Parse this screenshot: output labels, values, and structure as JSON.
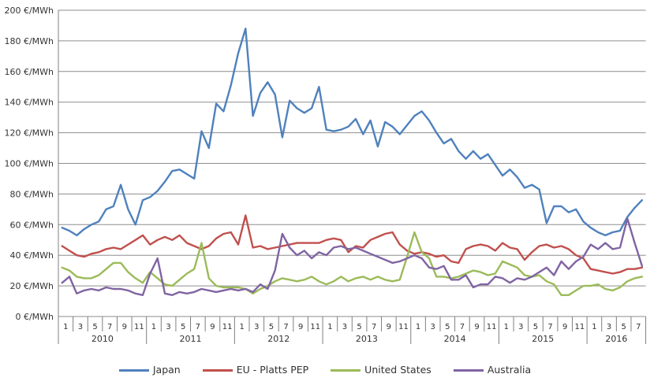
{
  "chart_data": {
    "type": "line",
    "title": "",
    "xlabel": "",
    "ylabel": "",
    "ylim": [
      0,
      200
    ],
    "ytick_step": 20,
    "ytick_suffix": " €/MWh",
    "grid": true,
    "legend_position": "bottom",
    "years": [
      "2010",
      "2011",
      "2012",
      "2013",
      "2014",
      "2015",
      "2016"
    ],
    "months_per_year": [
      12,
      12,
      12,
      12,
      12,
      12,
      8
    ],
    "colors": {
      "grid": "#8e8e8e",
      "axis": "#808080",
      "text": "#333333",
      "background": "#ffffff"
    },
    "series": [
      {
        "name": "Japan",
        "color": "#4F81BD",
        "values": [
          58,
          56,
          53,
          57,
          60,
          62,
          70,
          72,
          86,
          70,
          60,
          76,
          78,
          82,
          88,
          95,
          96,
          93,
          90,
          121,
          110,
          139,
          134,
          151,
          172,
          188,
          131,
          146,
          153,
          145,
          117,
          141,
          136,
          133,
          136,
          150,
          122,
          121,
          122,
          124,
          129,
          119,
          128,
          111,
          127,
          124,
          119,
          125,
          131,
          134,
          128,
          120,
          113,
          116,
          108,
          103,
          108,
          103,
          106,
          99,
          92,
          96,
          91,
          84,
          86,
          83,
          61,
          72,
          72,
          68,
          70,
          62,
          58,
          55,
          53,
          55,
          56,
          65,
          71,
          76
        ]
      },
      {
        "name": "EU - Platts PEP",
        "color": "#C0504D",
        "values": [
          46,
          43,
          40,
          39,
          41,
          42,
          44,
          45,
          44,
          47,
          50,
          53,
          47,
          50,
          52,
          50,
          53,
          48,
          46,
          44,
          46,
          51,
          54,
          55,
          47,
          66,
          45,
          46,
          44,
          45,
          46,
          47,
          48,
          48,
          48,
          48,
          50,
          51,
          50,
          42,
          46,
          45,
          50,
          52,
          54,
          55,
          47,
          43,
          41,
          42,
          41,
          39,
          40,
          36,
          35,
          44,
          46,
          47,
          46,
          43,
          48,
          45,
          44,
          37,
          42,
          46,
          47,
          45,
          46,
          44,
          40,
          38,
          31,
          30,
          29,
          28,
          29,
          31,
          31,
          32
        ]
      },
      {
        "name": "United States",
        "color": "#9BBB59",
        "values": [
          32,
          30,
          26,
          25,
          25,
          27,
          31,
          35,
          35,
          29,
          25,
          22,
          29,
          25,
          21,
          20,
          24,
          28,
          31,
          48,
          25,
          20,
          19,
          19,
          19,
          18,
          15,
          18,
          20,
          23,
          25,
          24,
          23,
          24,
          26,
          23,
          21,
          23,
          26,
          23,
          25,
          26,
          24,
          26,
          24,
          23,
          24,
          39,
          55,
          42,
          38,
          26,
          26,
          25,
          26,
          28,
          30,
          29,
          27,
          28,
          36,
          34,
          32,
          27,
          26,
          27,
          23,
          21,
          14,
          14,
          17,
          20,
          20,
          21,
          18,
          17,
          19,
          23,
          25,
          26
        ]
      },
      {
        "name": "Australia",
        "color": "#8064A2",
        "values": [
          22,
          26,
          15,
          17,
          18,
          17,
          19,
          18,
          18,
          17,
          15,
          14,
          28,
          38,
          15,
          14,
          16,
          15,
          16,
          18,
          17,
          16,
          17,
          18,
          17,
          18,
          16,
          21,
          18,
          30,
          54,
          45,
          40,
          43,
          38,
          42,
          40,
          45,
          46,
          44,
          45,
          43,
          41,
          39,
          37,
          35,
          36,
          38,
          40,
          38,
          32,
          31,
          33,
          24,
          24,
          27,
          19,
          21,
          21,
          26,
          25,
          22,
          25,
          24,
          26,
          29,
          32,
          27,
          36,
          31,
          36,
          39,
          47,
          44,
          48,
          44,
          45,
          64,
          48,
          33
        ]
      }
    ]
  }
}
